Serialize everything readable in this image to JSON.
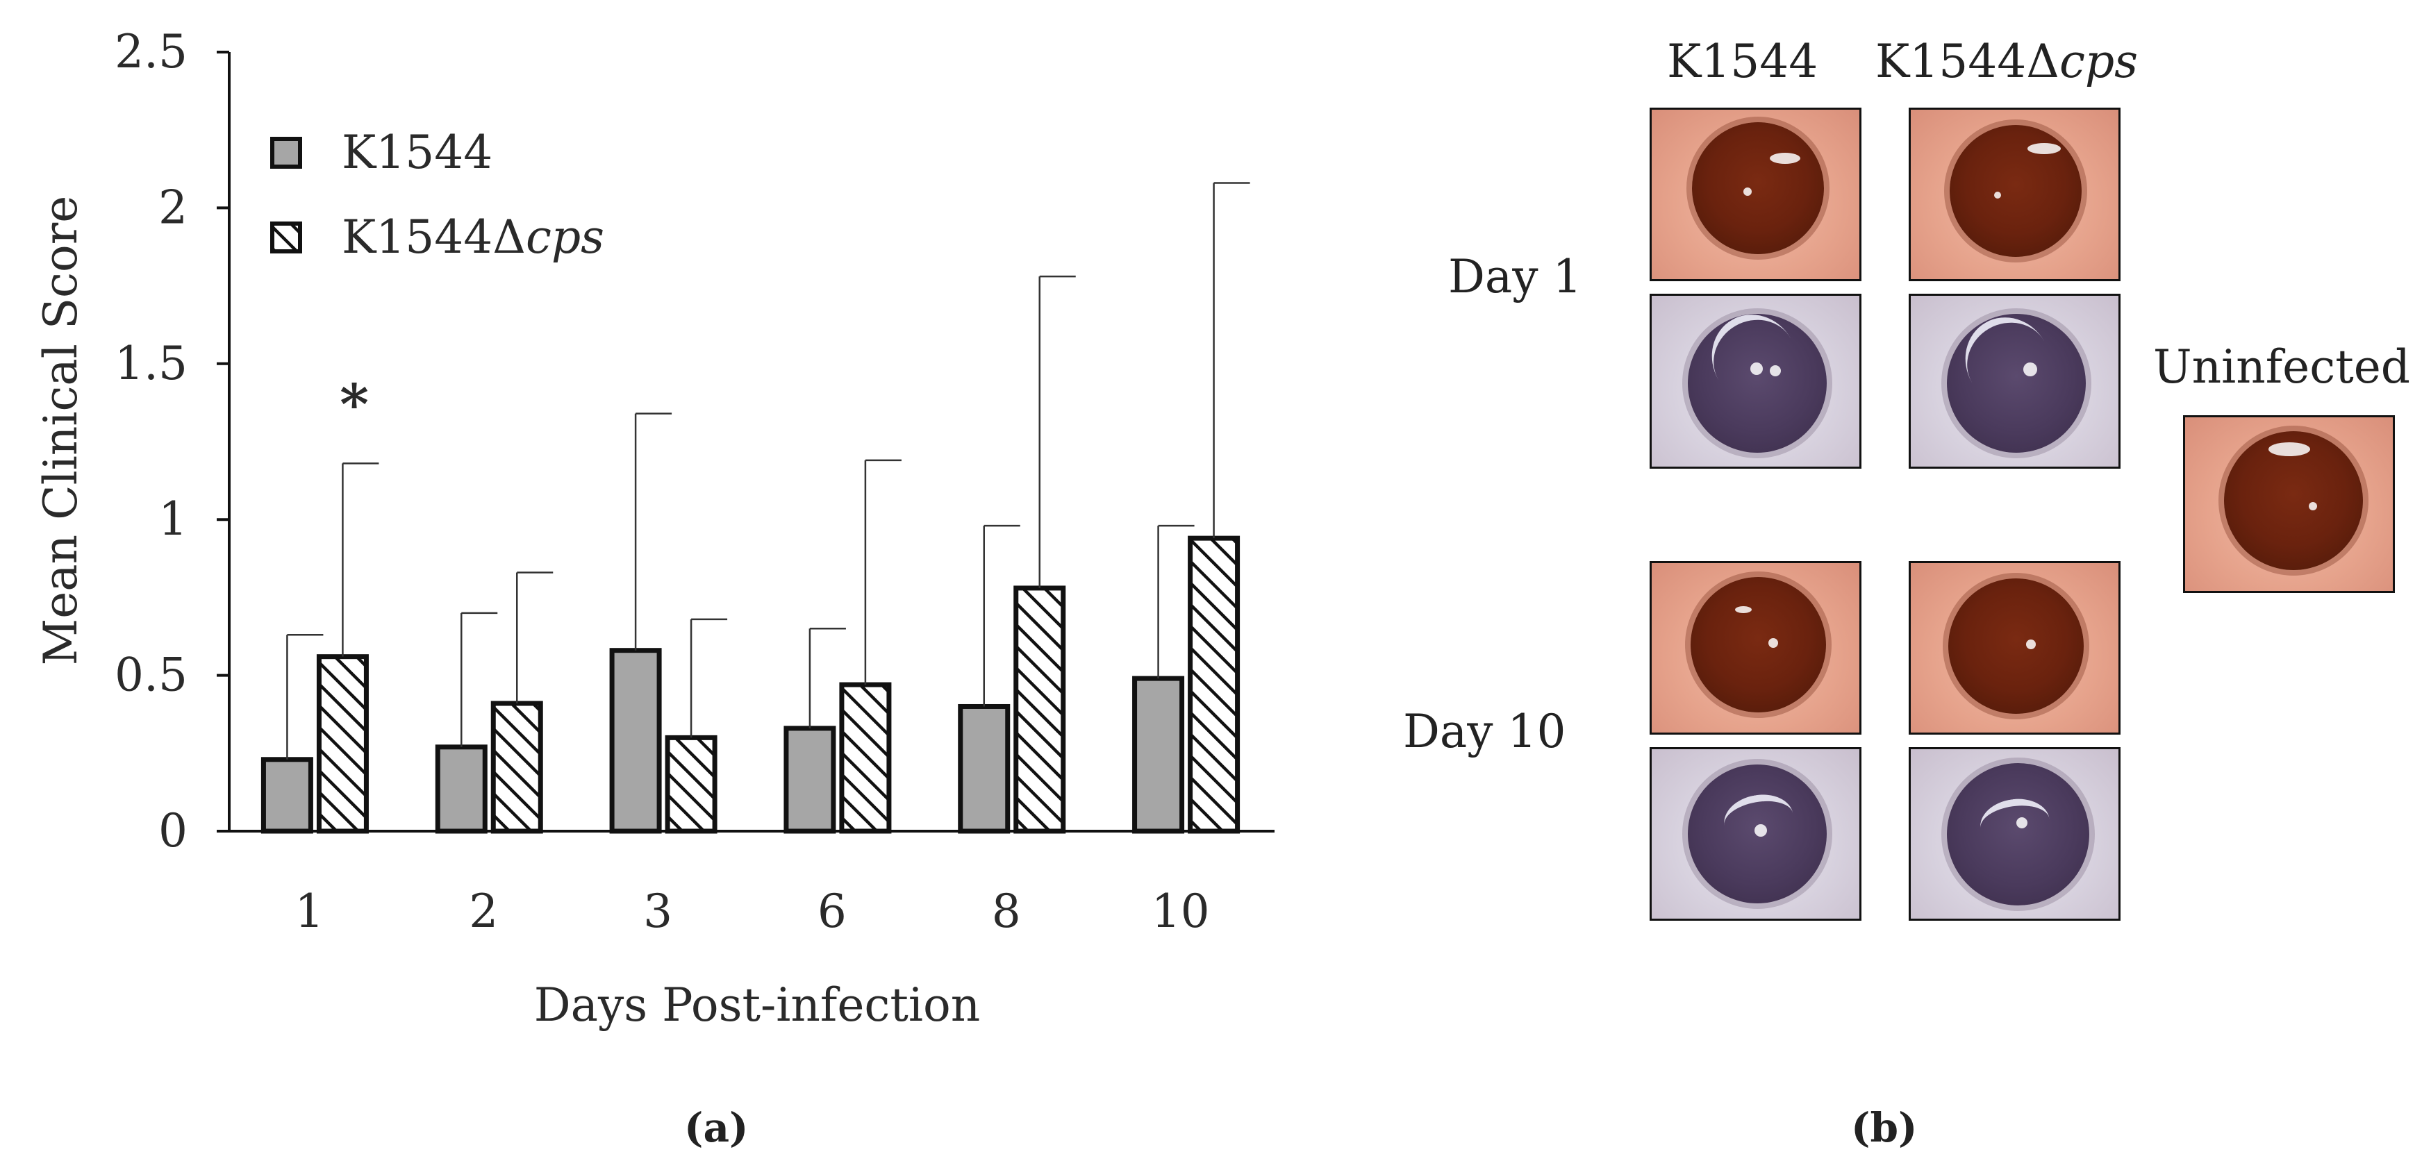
{
  "chart_data": {
    "type": "bar",
    "panel_label": "(a)",
    "xlabel": "Days Post-infection",
    "ylabel": "Mean Clinical Score",
    "ylim": [
      0,
      2.5
    ],
    "yticks": [
      "0",
      "0.5",
      "1",
      "1.5",
      "2",
      "2.5"
    ],
    "categories": [
      "1",
      "2",
      "3",
      "6",
      "8",
      "10"
    ],
    "series": [
      {
        "name": "K1544",
        "values": [
          0.23,
          0.27,
          0.58,
          0.33,
          0.4,
          0.49
        ],
        "error": [
          0.4,
          0.43,
          0.76,
          0.32,
          0.58,
          0.49
        ],
        "fill": "#a6a6a6"
      },
      {
        "name_prefix": "K1544Δ",
        "name_italic": "cps",
        "values": [
          0.56,
          0.41,
          0.3,
          0.47,
          0.78,
          0.94
        ],
        "error": [
          0.62,
          0.42,
          0.38,
          0.72,
          1.0,
          1.14
        ],
        "fill": "hatched"
      }
    ],
    "annotations": [
      {
        "text": "*",
        "category": "1"
      }
    ],
    "legend_position": "top-left"
  },
  "panel_b": {
    "label": "(b)",
    "col1": "K1544",
    "col2_prefix": "K1544Δ",
    "col2_italic": "cps",
    "row1": "Day 1",
    "row2": "Day 10",
    "uninfected": "Uninfected"
  }
}
